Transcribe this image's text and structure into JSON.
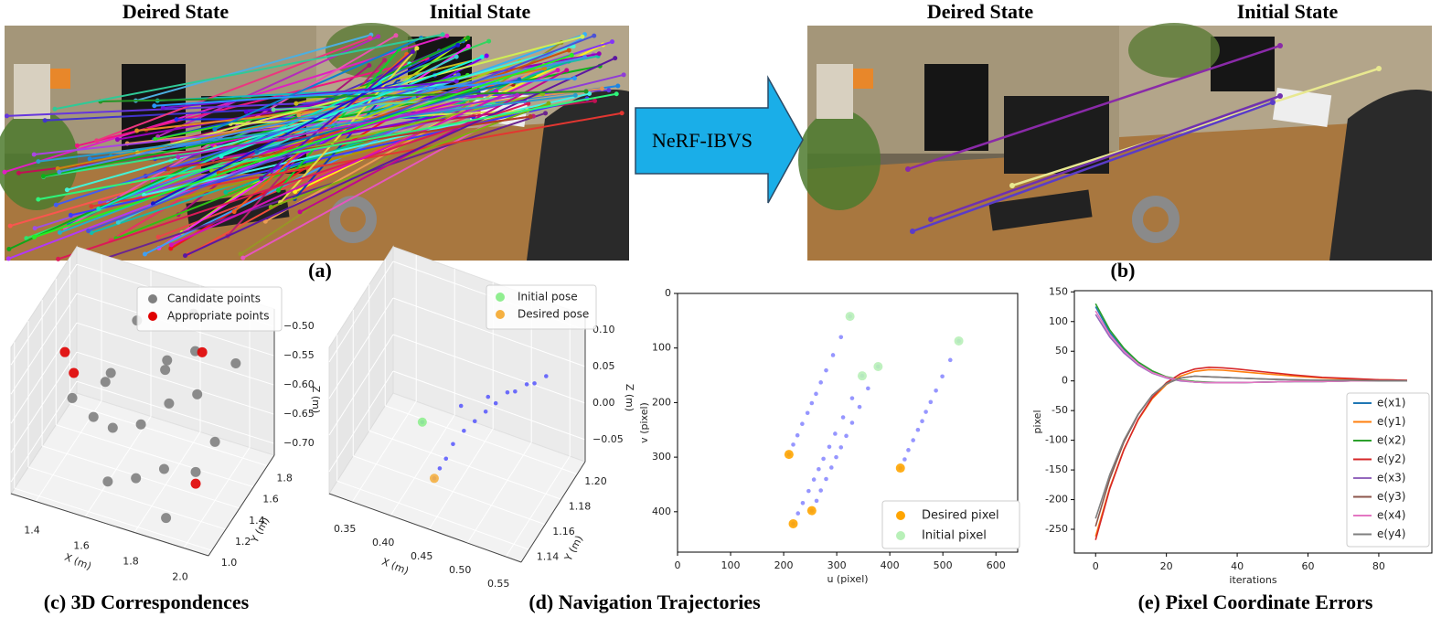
{
  "figure": {
    "panel_a": {
      "desired_title": "Deired State",
      "initial_title": "Initial State",
      "label": "(a)"
    },
    "method": "NeRF-IBVS",
    "panel_b": {
      "desired_title": "Deired State",
      "initial_title": "Initial State",
      "label": "(b)"
    },
    "caption_c": "(c) 3D Correspondences",
    "caption_d": "(d)  Navigation Trajectories",
    "caption_e": "(e)  Pixel Coordinate Errors"
  },
  "chart_data": [
    {
      "type": "scatter3d",
      "xlabel": "X (m)",
      "ylabel": "Y (m)",
      "zlabel": "Z (m)",
      "xlim": [
        1.3,
        2.1
      ],
      "ylim": [
        0.95,
        1.9
      ],
      "zlim": [
        -0.72,
        -0.47
      ],
      "xticks": [
        1.4,
        1.6,
        1.8,
        {
          "value": 2,
          "label": "2.0"
        }
      ],
      "yticks": [
        {
          "value": 1,
          "label": "1.0"
        },
        1.2,
        1.4,
        1.6,
        1.8
      ],
      "zticks": [
        {
          "value": -0.5,
          "label": "−0.50"
        },
        {
          "value": -0.55,
          "label": "−0.55"
        },
        {
          "value": -0.6,
          "label": "−0.60"
        },
        {
          "value": -0.65,
          "label": "−0.65"
        },
        {
          "value": -0.7,
          "label": "−0.70"
        }
      ],
      "legend": "upper center",
      "series": [
        {
          "name": "Candidate points",
          "color": "#808080",
          "x": [
            1.45,
            1.55,
            1.6,
            1.7,
            1.75,
            1.8,
            1.85,
            1.9,
            1.65,
            1.5,
            1.95,
            2.0,
            1.7,
            1.6,
            1.8,
            1.9,
            1.55,
            1.75,
            1.85,
            2.0
          ],
          "y": [
            1.3,
            1.5,
            1.7,
            1.4,
            1.6,
            1.8,
            1.2,
            1.5,
            1.1,
            1.6,
            1.3,
            1.7,
            1.75,
            1.35,
            1.45,
            1.05,
            1.25,
            1.15,
            1.65,
            1.4
          ],
          "z": [
            -0.6,
            -0.58,
            -0.52,
            -0.63,
            -0.55,
            -0.5,
            -0.65,
            -0.57,
            -0.68,
            -0.62,
            -0.66,
            -0.54,
            -0.6,
            -0.64,
            -0.59,
            -0.7,
            -0.61,
            -0.67,
            -0.53,
            -0.62
          ]
        },
        {
          "name": "Appropriate points",
          "color": "#e00000",
          "x": [
            1.35,
            1.4,
            1.95,
            1.85
          ],
          "y": [
            1.55,
            1.5,
            1.3,
            1.75
          ],
          "z": [
            -0.58,
            -0.6,
            -0.68,
            -0.55
          ]
        }
      ]
    },
    {
      "type": "trajectory3d",
      "xlabel": "X (m)",
      "ylabel": "Y (m)",
      "zlabel": "Z (m)",
      "xlim": [
        0.32,
        0.57
      ],
      "ylim": [
        1.13,
        1.21
      ],
      "zlim": [
        -0.08,
        0.12
      ],
      "xticks": [
        0.35,
        {
          "value": 0.4,
          "label": "0.40"
        },
        0.45,
        {
          "value": 0.5,
          "label": "0.50"
        },
        0.55
      ],
      "yticks": [
        1.14,
        1.16,
        1.18,
        {
          "value": 1.2,
          "label": "1.20"
        }
      ],
      "zticks": [
        {
          "value": 0.1,
          "label": "0.10"
        },
        0.05,
        {
          "value": 0,
          "label": "0.00"
        },
        {
          "value": -0.05,
          "label": "−0.05"
        }
      ],
      "legend": "upper right",
      "trajectory": {
        "color": "#4040ff",
        "x": [
          0.41,
          0.45,
          0.48,
          0.51,
          0.53,
          0.54,
          0.52,
          0.5,
          0.49,
          0.48,
          0.47,
          0.46,
          0.45,
          0.445,
          0.44,
          0.436
        ],
        "y": [
          1.16,
          1.17,
          1.175,
          1.18,
          1.185,
          1.19,
          1.185,
          1.18,
          1.175,
          1.172,
          1.168,
          1.164,
          1.16,
          1.156,
          1.153,
          1.15
        ],
        "z": [
          0.0,
          0.02,
          0.035,
          0.045,
          0.055,
          0.06,
          0.05,
          0.04,
          0.03,
          0.02,
          0.01,
          0.0,
          -0.015,
          -0.03,
          -0.04,
          -0.05
        ]
      },
      "series": [
        {
          "name": "Initial pose",
          "color": "#90ee90",
          "x": [
            0.41
          ],
          "y": [
            1.16
          ],
          "z": [
            0.0
          ]
        },
        {
          "name": "Desired pose",
          "color": "#f5b041",
          "x": [
            0.436
          ],
          "y": [
            1.15
          ],
          "z": [
            -0.05
          ]
        }
      ]
    },
    {
      "type": "scatter",
      "xlabel": "u (pixel)",
      "ylabel": "v (pixel)",
      "xlim": [
        0,
        641
      ],
      "ylim": [
        474,
        0
      ],
      "xticks": [
        0,
        100,
        200,
        300,
        400,
        500,
        600
      ],
      "yticks": [
        0,
        100,
        200,
        300,
        400
      ],
      "legend": "lower right",
      "trajectory_color": "#6a6aff",
      "trajectories": [
        {
          "x": [
            325,
            308,
            293,
            280,
            270,
            261,
            253,
            245,
            235,
            226,
            218,
            210
          ],
          "y": [
            42,
            80,
            113,
            141,
            163,
            184,
            201,
            219,
            239,
            260,
            277,
            295
          ]
        },
        {
          "x": [
            348,
            329,
            312,
            297,
            286,
            275,
            266,
            257,
            247,
            236,
            227,
            218
          ],
          "y": [
            151,
            192,
            227,
            257,
            281,
            303,
            322,
            341,
            362,
            384,
            403,
            422
          ]
        },
        {
          "x": [
            378,
            359,
            343,
            329,
            318,
            308,
            299,
            290,
            280,
            270,
            262,
            253
          ],
          "y": [
            134,
            174,
            208,
            237,
            261,
            282,
            300,
            319,
            340,
            361,
            380,
            398
          ]
        },
        {
          "x": [
            530,
            514,
            499,
            487,
            477,
            468,
            461,
            453,
            444,
            435,
            428,
            420
          ],
          "y": [
            87,
            122,
            152,
            178,
            199,
            217,
            234,
            250,
            269,
            287,
            304,
            320
          ]
        }
      ],
      "series": [
        {
          "name": "Desired pixel",
          "color": "#ffa500",
          "x": [
            210,
            218,
            253,
            420
          ],
          "y": [
            295,
            422,
            398,
            320
          ]
        },
        {
          "name": "Initial pixel",
          "color": "#b8f0b8",
          "x": [
            325,
            348,
            378,
            530
          ],
          "y": [
            42,
            151,
            134,
            87
          ]
        }
      ]
    },
    {
      "type": "line",
      "xlabel": "iterations",
      "ylabel": "pixel",
      "xlim": [
        -6,
        95
      ],
      "ylim": [
        -290,
        152
      ],
      "xticks": [
        0,
        20,
        40,
        60,
        80
      ],
      "yticks": [
        150,
        100,
        50,
        0,
        -50,
        -100,
        -150,
        -200,
        -250
      ],
      "legend": "lower right",
      "x": [
        0,
        4,
        8,
        12,
        16,
        20,
        24,
        28,
        32,
        36,
        40,
        48,
        56,
        64,
        72,
        80,
        88
      ],
      "series": [
        {
          "name": "e(x1)",
          "color": "#1f77b4",
          "values": [
            125,
            82,
            52,
            30,
            15,
            6,
            1,
            -2,
            -3,
            -3,
            -3,
            -2,
            -1,
            -1,
            0,
            0,
            0
          ]
        },
        {
          "name": "e(y1)",
          "color": "#ff7f0e",
          "values": [
            -262,
            -180,
            -115,
            -66,
            -30,
            -6,
            8,
            16,
            19,
            18,
            16,
            12,
            8,
            5,
            3,
            2,
            1
          ]
        },
        {
          "name": "e(x2)",
          "color": "#2ca02c",
          "values": [
            130,
            86,
            55,
            32,
            17,
            7,
            2,
            -1,
            -2,
            -3,
            -3,
            -2,
            -1,
            -1,
            0,
            0,
            0
          ]
        },
        {
          "name": "e(y2)",
          "color": "#d62728",
          "values": [
            -268,
            -182,
            -116,
            -65,
            -28,
            -3,
            12,
            20,
            23,
            22,
            20,
            15,
            10,
            6,
            4,
            2,
            1
          ]
        },
        {
          "name": "e(x3)",
          "color": "#9467bd",
          "values": [
            112,
            74,
            47,
            27,
            13,
            5,
            0,
            -2,
            -3,
            -3,
            -3,
            -2,
            -1,
            -1,
            0,
            0,
            0
          ]
        },
        {
          "name": "e(y3)",
          "color": "#8c564b",
          "values": [
            -245,
            -165,
            -103,
            -57,
            -24,
            -4,
            5,
            8,
            7,
            6,
            5,
            3,
            2,
            1,
            1,
            0,
            0
          ]
        },
        {
          "name": "e(x4)",
          "color": "#e377c2",
          "values": [
            118,
            78,
            50,
            29,
            14,
            6,
            1,
            -2,
            -3,
            -3,
            -3,
            -2,
            -1,
            -1,
            0,
            0,
            0
          ]
        },
        {
          "name": "e(y4)",
          "color": "#7f7f7f",
          "values": [
            -232,
            -158,
            -100,
            -56,
            -24,
            -5,
            5,
            8,
            7,
            6,
            5,
            3,
            2,
            1,
            1,
            0,
            0
          ]
        }
      ]
    }
  ]
}
